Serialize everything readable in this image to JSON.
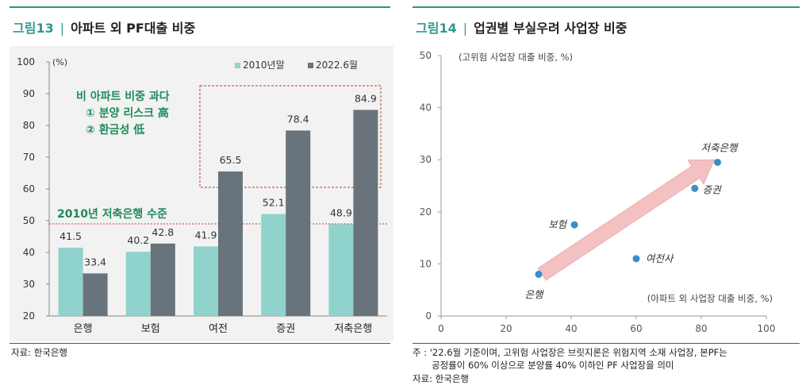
{
  "left_panel": {
    "figure_number": "그림13",
    "figure_title": "아파트 외 PF대출 비중",
    "source": "자료: 한국은행"
  },
  "right_panel": {
    "figure_number": "그림14",
    "figure_title": "업권별 부실우려 사업장 비중",
    "footnote_line1": "주 : '22.6월 기준이며, 고위험 사업장은 브릿지론은 위험지역 소재 사업장, 본PF는",
    "footnote_line2": "공정률이 60% 이상으로 분양률 40% 이하인 PF 사업장을 의미",
    "source": "자료: 한국은행"
  },
  "chart_data": [
    {
      "type": "bar",
      "title": "아파트 외 PF대출 비중",
      "ylabel": "(%)",
      "ylim": [
        20,
        100
      ],
      "yticks": [
        20,
        30,
        40,
        50,
        60,
        70,
        80,
        90,
        100
      ],
      "categories": [
        "은행",
        "보험",
        "여전",
        "증권",
        "저축은행"
      ],
      "series": [
        {
          "name": "2010년말",
          "values": [
            41.5,
            40.2,
            41.9,
            52.1,
            48.9
          ],
          "labels": [
            "41.5",
            "40.2",
            "41.9",
            "52.1",
            "48.9"
          ],
          "color": "#8fd3cc"
        },
        {
          "name": "2022.6월",
          "values": [
            33.4,
            42.8,
            65.5,
            78.4,
            84.9
          ],
          "labels": [
            "33.4",
            "42.8",
            "65.5",
            "78.4",
            "84.9"
          ],
          "color": "#68737b"
        }
      ],
      "legend_position": "top-right",
      "reference_line": {
        "value": 49,
        "label": "2010년 저축은행 수준",
        "color": "#c0392b"
      },
      "annotation": {
        "lines": [
          "비 아파트 비중 과다",
          "① 분양 리스크 高",
          "② 환금성 低"
        ],
        "color": "#1f8a5a"
      }
    },
    {
      "type": "scatter",
      "title": "업권별 부실우려 사업장 비중",
      "xlabel": "(아파트 외 사업장 대출 비중, %)",
      "ylabel": "(고위험 사업장 대출 비중, %)",
      "xlim": [
        0,
        100
      ],
      "ylim": [
        0,
        50
      ],
      "xticks": [
        0,
        20,
        40,
        60,
        80,
        100
      ],
      "yticks": [
        0,
        10,
        20,
        30,
        40,
        50
      ],
      "point_color": "#3a8fc4",
      "points": [
        {
          "label": "은행",
          "x": 30,
          "y": 8
        },
        {
          "label": "보험",
          "x": 41,
          "y": 17.5
        },
        {
          "label": "여전사",
          "x": 60,
          "y": 11
        },
        {
          "label": "증권",
          "x": 78,
          "y": 24.5
        },
        {
          "label": "저축은행",
          "x": 85,
          "y": 29.5
        }
      ],
      "trend_arrow": {
        "from": [
          31,
          8
        ],
        "to": [
          84,
          30
        ],
        "color": "#f1b7b7"
      }
    }
  ]
}
